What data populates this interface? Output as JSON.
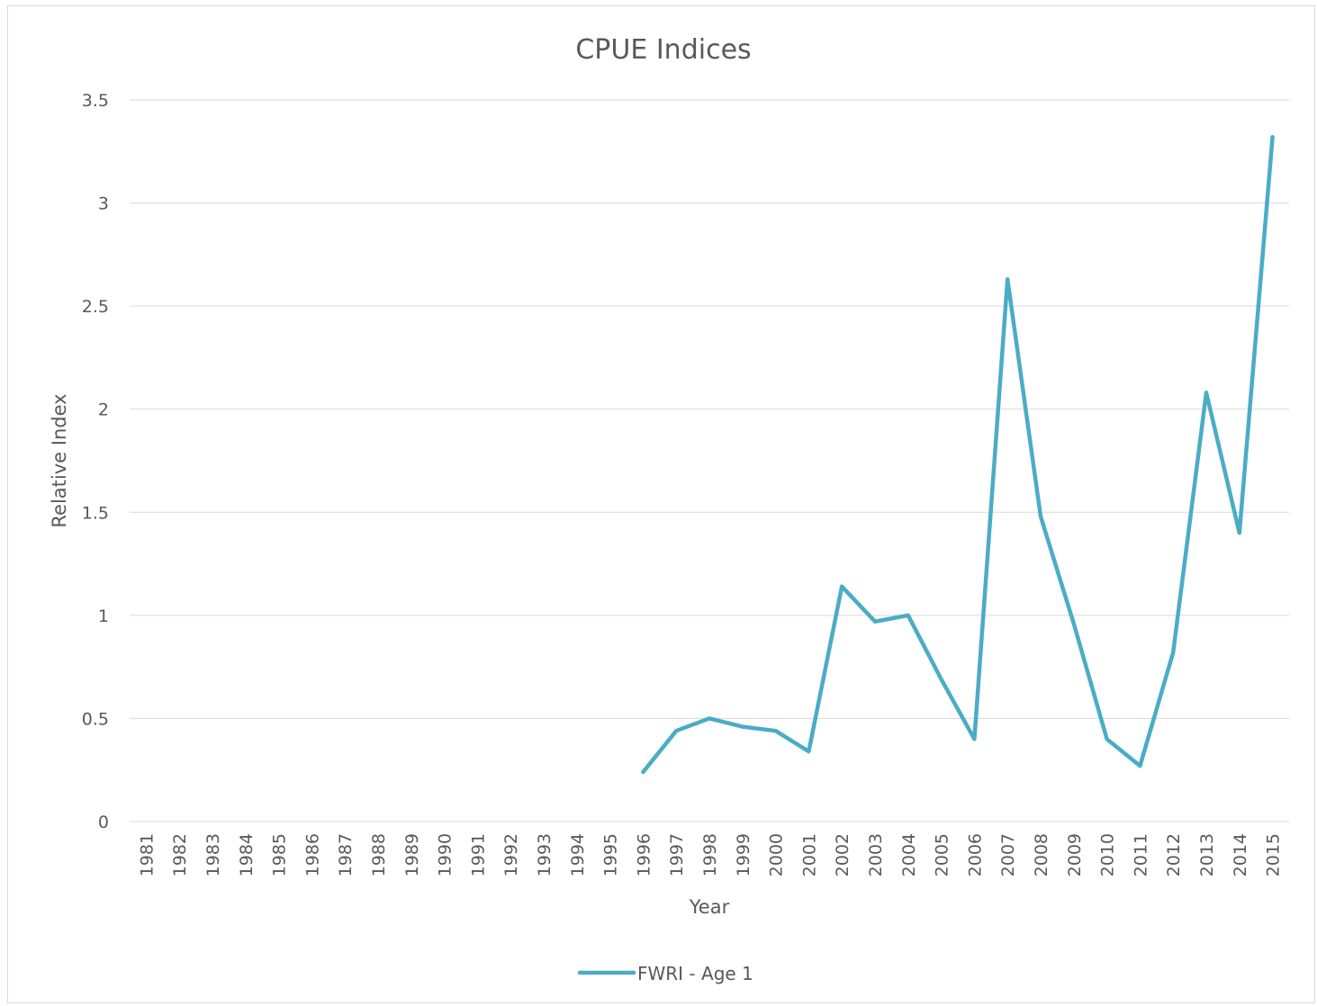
{
  "chart_data": {
    "type": "line",
    "title": "CPUE Indices",
    "xlabel": "Year",
    "ylabel": "Relative Index",
    "ylim": [
      0,
      3.5
    ],
    "yticks": [
      "0",
      "0.5",
      "1",
      "1.5",
      "2",
      "2.5",
      "3",
      "3.5"
    ],
    "grid": true,
    "legend_position": "bottom",
    "categories": [
      "1981",
      "1982",
      "1983",
      "1984",
      "1985",
      "1986",
      "1987",
      "1988",
      "1989",
      "1990",
      "1991",
      "1992",
      "1993",
      "1994",
      "1995",
      "1996",
      "1997",
      "1998",
      "1999",
      "2000",
      "2001",
      "2002",
      "2003",
      "2004",
      "2005",
      "2006",
      "2007",
      "2008",
      "2009",
      "2010",
      "2011",
      "2012",
      "2013",
      "2014",
      "2015"
    ],
    "series": [
      {
        "name": "FWRI - Age 1",
        "color": "#4bacc6",
        "values": [
          null,
          null,
          null,
          null,
          null,
          null,
          null,
          null,
          null,
          null,
          null,
          null,
          null,
          null,
          null,
          0.24,
          0.44,
          0.5,
          0.46,
          0.44,
          0.34,
          1.14,
          0.97,
          1.0,
          0.69,
          0.4,
          2.63,
          1.48,
          0.96,
          0.4,
          0.27,
          0.82,
          2.08,
          1.4,
          3.32
        ]
      }
    ]
  }
}
